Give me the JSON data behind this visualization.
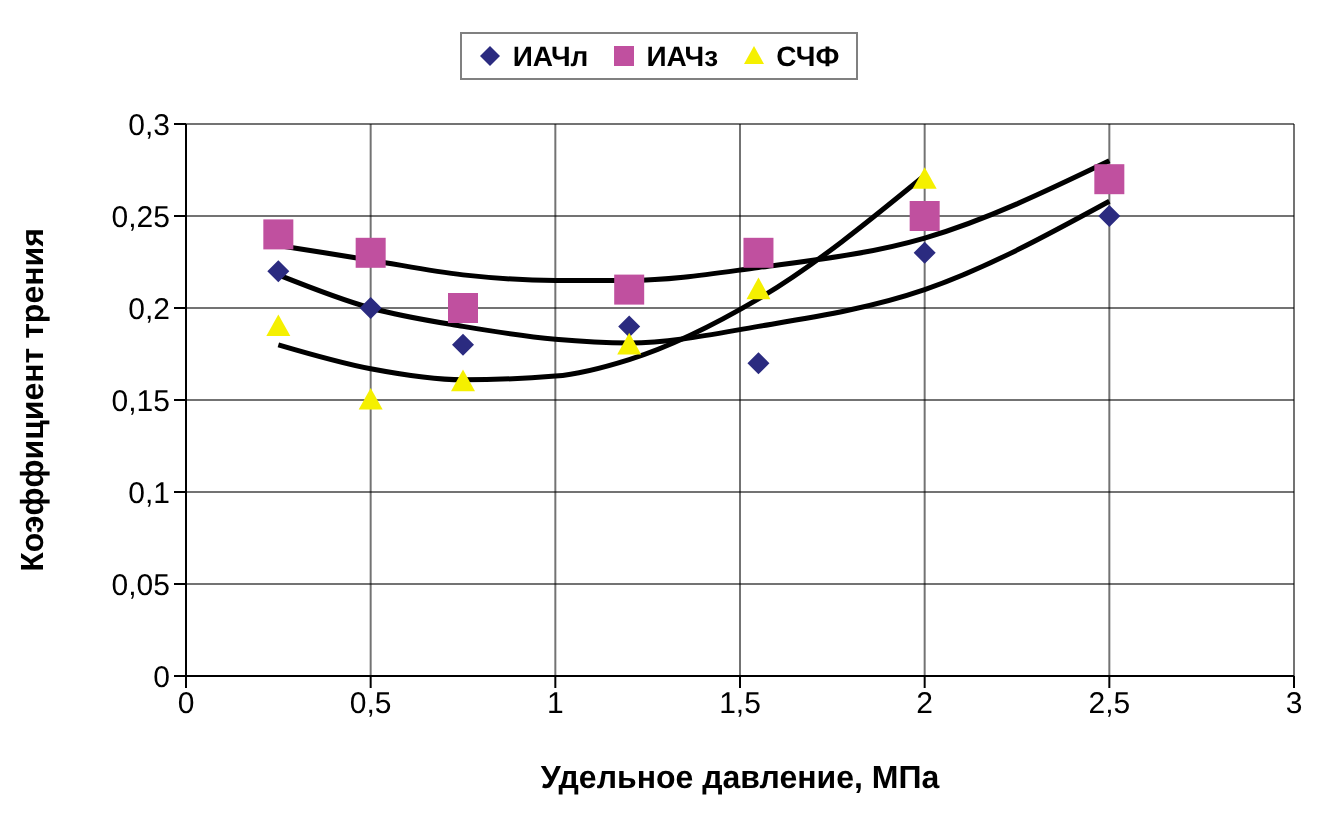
{
  "chart_data": {
    "type": "scatter",
    "xlabel": "Удельное давление, МПа",
    "ylabel": "Коэффициент трения",
    "xlim": [
      0,
      3
    ],
    "xticks": [
      0,
      {
        "value": 0.5,
        "label": "0,5"
      },
      1,
      {
        "value": 1.5,
        "label": "1,5"
      },
      2,
      {
        "value": 2.5,
        "label": "2,5"
      },
      3
    ],
    "ylim": [
      0,
      0.3
    ],
    "yticks": [
      0,
      {
        "value": 0.05,
        "label": "0,05"
      },
      {
        "value": 0.1,
        "label": "0,1"
      },
      {
        "value": 0.15,
        "label": "0,15"
      },
      {
        "value": 0.2,
        "label": "0,2"
      },
      {
        "value": 0.25,
        "label": "0,25"
      },
      {
        "value": 0.3,
        "label": "0,3"
      }
    ],
    "grid": true,
    "legend": "top",
    "series": [
      {
        "name": "ИАЧл",
        "marker": "diamond",
        "color": "#2b2b80",
        "x": [
          0.25,
          0.5,
          0.75,
          1.2,
          1.55,
          2,
          2.5
        ],
        "values": [
          0.22,
          0.2,
          0.18,
          0.19,
          0.17,
          0.23,
          0.25
        ]
      },
      {
        "name": "ИАЧз",
        "marker": "square",
        "color": "#c0509f",
        "x": [
          0.25,
          0.5,
          0.75,
          1.2,
          1.55,
          2,
          2.5
        ],
        "values": [
          0.24,
          0.23,
          0.2,
          0.21,
          0.23,
          0.25,
          0.27
        ]
      },
      {
        "name": "СЧФ",
        "marker": "triangle",
        "color": "#f5f000",
        "x": [
          0.25,
          0.5,
          0.75,
          1.2,
          1.55,
          2
        ],
        "values": [
          0.19,
          0.15,
          0.16,
          0.18,
          0.21,
          0.27
        ]
      },
      {
        "type": "line",
        "marker": "none",
        "color": "#000000",
        "x": [
          0.25,
          0.5,
          0.75,
          1,
          1.2,
          1.55,
          2,
          2.5
        ],
        "values": [
          0.218,
          0.2,
          0.19,
          0.183,
          0.181,
          0.19,
          0.21,
          0.258
        ]
      },
      {
        "type": "line",
        "marker": "none",
        "color": "#000000",
        "x": [
          0.25,
          0.5,
          0.75,
          1,
          1.2,
          1.55,
          2,
          2.5
        ],
        "values": [
          0.234,
          0.226,
          0.218,
          0.215,
          0.215,
          0.222,
          0.238,
          0.28
        ]
      },
      {
        "type": "line",
        "marker": "none",
        "color": "#000000",
        "x": [
          0.25,
          0.5,
          0.75,
          1,
          1.2,
          1.55,
          2
        ],
        "values": [
          0.18,
          0.167,
          0.161,
          0.163,
          0.172,
          0.205,
          0.272
        ]
      }
    ]
  }
}
